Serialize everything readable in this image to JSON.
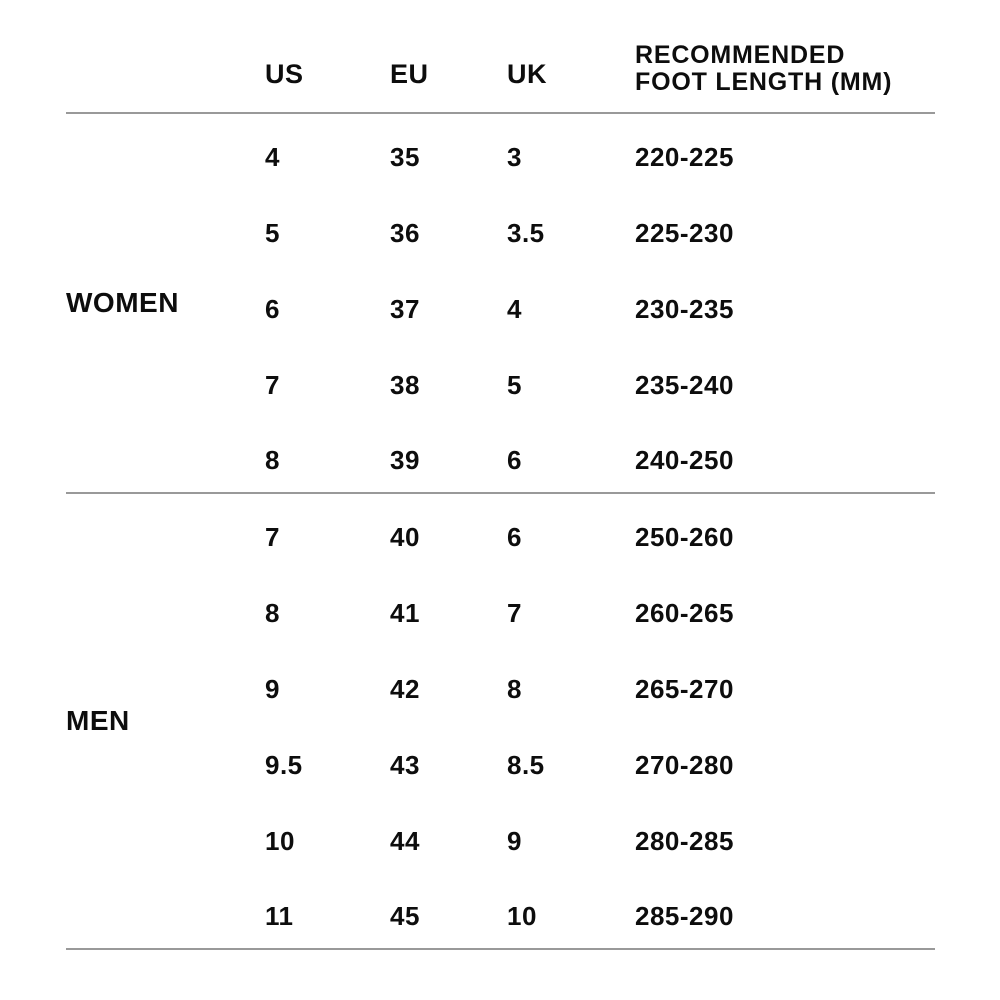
{
  "chart_data": {
    "type": "table",
    "columns": [
      "",
      "US",
      "EU",
      "UK",
      "RECOMMENDED FOOT LENGTH (MM)"
    ],
    "header": {
      "us": "US",
      "eu": "EU",
      "uk": "UK",
      "foot_length_line1": "RECOMMENDED",
      "foot_length_line2": "FOOT LENGTH (MM)"
    },
    "sections": [
      {
        "label": "WOMEN",
        "rows": [
          {
            "us": "4",
            "eu": "35",
            "uk": "3",
            "foot_length_mm": "220-225"
          },
          {
            "us": "5",
            "eu": "36",
            "uk": "3.5",
            "foot_length_mm": "225-230"
          },
          {
            "us": "6",
            "eu": "37",
            "uk": "4",
            "foot_length_mm": "230-235"
          },
          {
            "us": "7",
            "eu": "38",
            "uk": "5",
            "foot_length_mm": "235-240"
          },
          {
            "us": "8",
            "eu": "39",
            "uk": "6",
            "foot_length_mm": "240-250"
          }
        ]
      },
      {
        "label": "MEN",
        "rows": [
          {
            "us": "7",
            "eu": "40",
            "uk": "6",
            "foot_length_mm": "250-260"
          },
          {
            "us": "8",
            "eu": "41",
            "uk": "7",
            "foot_length_mm": "260-265"
          },
          {
            "us": "9",
            "eu": "42",
            "uk": "8",
            "foot_length_mm": "265-270"
          },
          {
            "us": "9.5",
            "eu": "43",
            "uk": "8.5",
            "foot_length_mm": "270-280"
          },
          {
            "us": "10",
            "eu": "44",
            "uk": "9",
            "foot_length_mm": "280-285"
          },
          {
            "us": "11",
            "eu": "45",
            "uk": "10",
            "foot_length_mm": "285-290"
          }
        ]
      }
    ],
    "layout": {
      "grid": "horizontal dividers below header, between sections, and at table bottom",
      "legend": "none"
    }
  },
  "colors": {
    "text": "#0d0d0d",
    "divider": "#999999",
    "background": "#ffffff"
  }
}
